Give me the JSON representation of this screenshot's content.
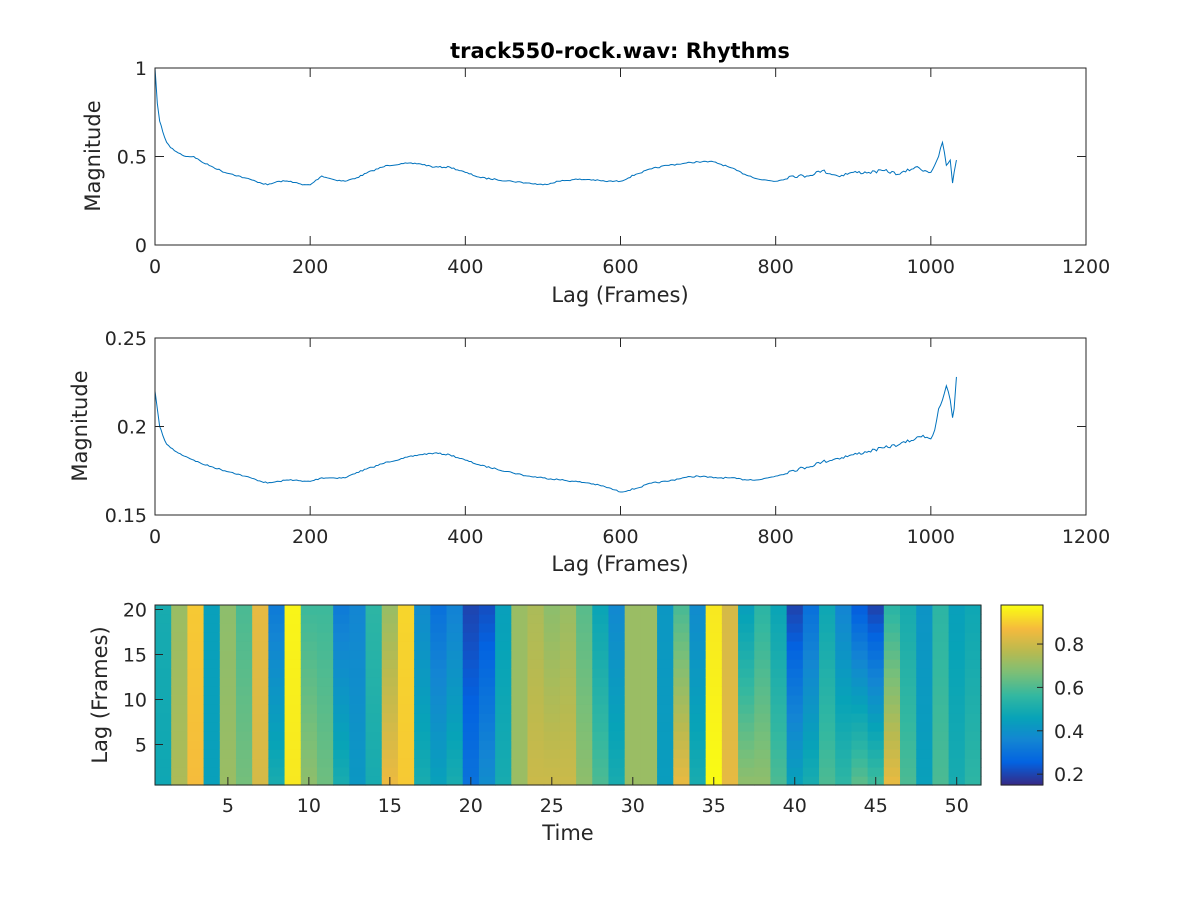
{
  "chart_data": [
    {
      "type": "line",
      "title": "track550-rock.wav: Rhythms",
      "xlabel": "Lag (Frames)",
      "ylabel": "Magnitude",
      "xlim": [
        0,
        1200
      ],
      "ylim": [
        0,
        1
      ],
      "xticks": [
        0,
        200,
        400,
        600,
        800,
        1000,
        1200
      ],
      "yticks": [
        0,
        0.5,
        1
      ],
      "xtick_labels": [
        "0",
        "200",
        "400",
        "600",
        "800",
        "1000",
        "1200"
      ],
      "ytick_labels": [
        "0",
        "0.5",
        "1"
      ],
      "color": "#0072bd",
      "grid": false,
      "x": [
        0,
        3,
        6,
        10,
        15,
        20,
        30,
        40,
        50,
        60,
        75,
        90,
        100,
        115,
        130,
        145,
        160,
        175,
        190,
        200,
        215,
        230,
        245,
        260,
        280,
        300,
        320,
        340,
        360,
        380,
        400,
        420,
        440,
        460,
        480,
        500,
        520,
        540,
        560,
        580,
        600,
        620,
        640,
        660,
        680,
        700,
        720,
        740,
        760,
        780,
        800,
        820,
        840,
        860,
        880,
        900,
        920,
        940,
        960,
        980,
        1000,
        1010,
        1015,
        1020,
        1025,
        1028,
        1030,
        1033
      ],
      "values": [
        1.0,
        0.8,
        0.7,
        0.64,
        0.58,
        0.55,
        0.52,
        0.5,
        0.5,
        0.47,
        0.44,
        0.41,
        0.4,
        0.38,
        0.36,
        0.34,
        0.36,
        0.36,
        0.34,
        0.34,
        0.39,
        0.37,
        0.36,
        0.38,
        0.42,
        0.45,
        0.46,
        0.46,
        0.44,
        0.44,
        0.41,
        0.38,
        0.37,
        0.36,
        0.35,
        0.34,
        0.36,
        0.37,
        0.37,
        0.36,
        0.36,
        0.4,
        0.43,
        0.45,
        0.46,
        0.47,
        0.47,
        0.44,
        0.4,
        0.37,
        0.36,
        0.39,
        0.39,
        0.42,
        0.39,
        0.41,
        0.41,
        0.42,
        0.4,
        0.44,
        0.41,
        0.5,
        0.58,
        0.45,
        0.48,
        0.35,
        0.41,
        0.48
      ]
    },
    {
      "type": "line",
      "title": "",
      "xlabel": "Lag (Frames)",
      "ylabel": "Magnitude",
      "xlim": [
        0,
        1200
      ],
      "ylim": [
        0.15,
        0.25
      ],
      "xticks": [
        0,
        200,
        400,
        600,
        800,
        1000,
        1200
      ],
      "yticks": [
        0.15,
        0.2,
        0.25
      ],
      "xtick_labels": [
        "0",
        "200",
        "400",
        "600",
        "800",
        "1000",
        "1200"
      ],
      "ytick_labels": [
        "0.15",
        "0.2",
        "0.25"
      ],
      "color": "#0072bd",
      "grid": false,
      "x": [
        0,
        3,
        6,
        10,
        15,
        20,
        30,
        40,
        50,
        60,
        75,
        90,
        100,
        115,
        130,
        145,
        160,
        175,
        190,
        200,
        215,
        230,
        245,
        260,
        280,
        300,
        320,
        340,
        360,
        380,
        400,
        420,
        440,
        460,
        480,
        500,
        520,
        540,
        560,
        580,
        600,
        620,
        640,
        660,
        680,
        700,
        720,
        740,
        760,
        780,
        800,
        820,
        840,
        860,
        880,
        900,
        920,
        940,
        960,
        980,
        990,
        1000,
        1005,
        1010,
        1015,
        1020,
        1025,
        1028,
        1030,
        1033
      ],
      "values": [
        0.22,
        0.21,
        0.2,
        0.195,
        0.19,
        0.188,
        0.185,
        0.183,
        0.181,
        0.179,
        0.177,
        0.175,
        0.174,
        0.172,
        0.17,
        0.168,
        0.169,
        0.17,
        0.169,
        0.169,
        0.171,
        0.171,
        0.171,
        0.174,
        0.177,
        0.18,
        0.182,
        0.184,
        0.185,
        0.184,
        0.181,
        0.178,
        0.176,
        0.174,
        0.172,
        0.171,
        0.17,
        0.169,
        0.168,
        0.166,
        0.163,
        0.165,
        0.168,
        0.169,
        0.171,
        0.172,
        0.171,
        0.171,
        0.17,
        0.17,
        0.172,
        0.175,
        0.177,
        0.18,
        0.182,
        0.184,
        0.186,
        0.188,
        0.19,
        0.193,
        0.195,
        0.193,
        0.198,
        0.21,
        0.215,
        0.223,
        0.215,
        0.205,
        0.21,
        0.228
      ]
    },
    {
      "type": "heatmap",
      "title": "",
      "xlabel": "Time",
      "ylabel": "Lag (Frames)",
      "xlim": [
        0.5,
        51.5
      ],
      "ylim": [
        0.5,
        20.5
      ],
      "xticks": [
        5,
        10,
        15,
        20,
        25,
        30,
        35,
        40,
        45,
        50
      ],
      "yticks": [
        5,
        10,
        15,
        20
      ],
      "xtick_labels": [
        "5",
        "10",
        "15",
        "20",
        "25",
        "30",
        "35",
        "40",
        "45",
        "50"
      ],
      "ytick_labels": [
        "5",
        "10",
        "15",
        "20"
      ],
      "colormap": "parula",
      "colorbar": {
        "range": [
          0.15,
          0.98
        ],
        "ticks": [
          0.2,
          0.4,
          0.6,
          0.8
        ],
        "tick_labels": [
          "0.2",
          "0.4",
          "0.6",
          "0.8"
        ]
      },
      "columns_top": [
        0.5,
        0.72,
        0.9,
        0.45,
        0.7,
        0.6,
        0.85,
        0.33,
        0.97,
        0.58,
        0.58,
        0.33,
        0.36,
        0.55,
        0.72,
        0.92,
        0.38,
        0.3,
        0.35,
        0.2,
        0.22,
        0.45,
        0.72,
        0.75,
        0.7,
        0.72,
        0.62,
        0.47,
        0.37,
        0.72,
        0.72,
        0.42,
        0.6,
        0.38,
        0.95,
        0.82,
        0.45,
        0.55,
        0.47,
        0.2,
        0.3,
        0.48,
        0.36,
        0.25,
        0.2,
        0.55,
        0.5,
        0.41,
        0.55,
        0.45,
        0.48
      ],
      "columns_bottom": [
        0.48,
        0.75,
        0.88,
        0.45,
        0.72,
        0.66,
        0.82,
        0.5,
        0.95,
        0.7,
        0.65,
        0.5,
        0.42,
        0.5,
        0.86,
        0.9,
        0.5,
        0.45,
        0.5,
        0.3,
        0.38,
        0.5,
        0.72,
        0.8,
        0.8,
        0.8,
        0.7,
        0.6,
        0.5,
        0.72,
        0.72,
        0.44,
        0.85,
        0.5,
        0.98,
        0.85,
        0.7,
        0.7,
        0.6,
        0.45,
        0.5,
        0.6,
        0.55,
        0.62,
        0.58,
        0.85,
        0.6,
        0.45,
        0.6,
        0.5,
        0.55
      ]
    }
  ]
}
